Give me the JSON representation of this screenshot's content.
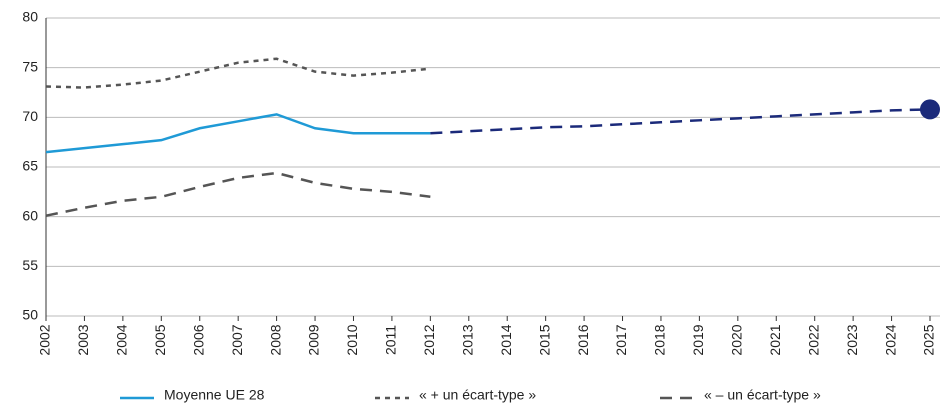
{
  "chart_data": {
    "type": "line",
    "x": [
      2002,
      2003,
      2004,
      2005,
      2006,
      2007,
      2008,
      2009,
      2010,
      2011,
      2012,
      2013,
      2014,
      2015,
      2016,
      2017,
      2018,
      2019,
      2020,
      2021,
      2022,
      2023,
      2024,
      2025
    ],
    "xlim": [
      2002,
      2025
    ],
    "xticks": [
      2002,
      2003,
      2004,
      2005,
      2006,
      2007,
      2008,
      2009,
      2010,
      2011,
      2012,
      2013,
      2014,
      2015,
      2016,
      2017,
      2018,
      2019,
      2020,
      2021,
      2022,
      2023,
      2024,
      2025
    ],
    "ylim": [
      50,
      80
    ],
    "yticks": [
      50,
      55,
      60,
      65,
      70,
      75,
      80
    ],
    "grid": true,
    "legend": "bottom",
    "series": [
      {
        "name": "Moyenne UE 28",
        "color": "#1f9ad6",
        "dash": "solid",
        "values": [
          66.5,
          66.9,
          67.3,
          67.7,
          68.9,
          69.6,
          70.3,
          68.9,
          68.4,
          68.4,
          68.4,
          null,
          null,
          null,
          null,
          null,
          null,
          null,
          null,
          null,
          null,
          null,
          null,
          null
        ]
      },
      {
        "name": "« + un écart-type »",
        "color": "#555555",
        "dash": "short",
        "values": [
          73.1,
          73.0,
          73.3,
          73.7,
          74.6,
          75.5,
          75.9,
          74.6,
          74.2,
          74.5,
          74.9,
          null,
          null,
          null,
          null,
          null,
          null,
          null,
          null,
          null,
          null,
          null,
          null,
          null
        ]
      },
      {
        "name": "« – un écart-type »",
        "color": "#555555",
        "dash": "long",
        "values": [
          60.1,
          60.9,
          61.6,
          62.0,
          63.0,
          63.9,
          64.4,
          63.4,
          62.8,
          62.5,
          62.0,
          null,
          null,
          null,
          null,
          null,
          null,
          null,
          null,
          null,
          null,
          null,
          null,
          null
        ]
      },
      {
        "color": "#1b2a7a",
        "dash": "long",
        "end_marker": true,
        "values": [
          null,
          null,
          null,
          null,
          null,
          null,
          null,
          null,
          null,
          null,
          68.4,
          68.6,
          68.8,
          69.0,
          69.1,
          69.3,
          69.5,
          69.7,
          69.9,
          70.1,
          70.3,
          70.5,
          70.7,
          70.8
        ]
      }
    ]
  }
}
